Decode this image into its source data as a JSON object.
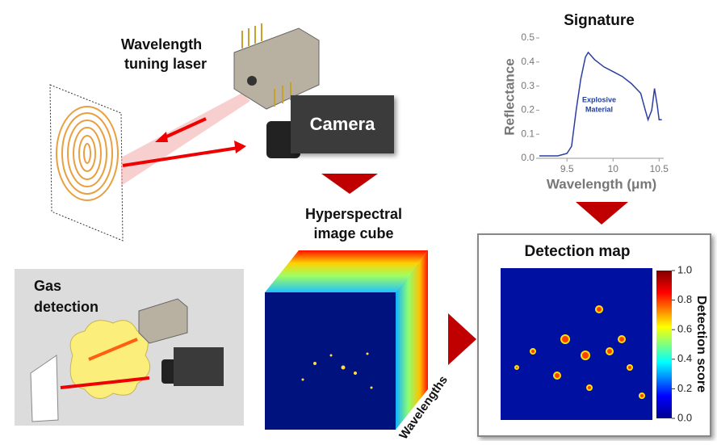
{
  "laser_label": [
    "Wavelength",
    "tuning laser"
  ],
  "camera_label": "Camera",
  "cube_label": [
    "Hyperspectral",
    "image cube"
  ],
  "cube_axis_label": "Wavelengths",
  "gas_label": [
    "Gas",
    "detection"
  ],
  "signature": {
    "title": "Signature",
    "x_label": "Wavelength (μm)",
    "y_label": "Reflectance",
    "annotation": [
      "Explosive",
      "Material"
    ],
    "x": [
      9.2,
      9.4,
      9.5,
      9.55,
      9.6,
      9.65,
      9.7,
      9.73,
      9.8,
      9.9,
      10.0,
      10.1,
      10.2,
      10.3,
      10.35,
      10.38,
      10.42,
      10.45,
      10.48,
      10.5,
      10.53
    ],
    "values": [
      0.01,
      0.01,
      0.02,
      0.05,
      0.2,
      0.33,
      0.42,
      0.44,
      0.41,
      0.38,
      0.36,
      0.34,
      0.31,
      0.27,
      0.2,
      0.16,
      0.2,
      0.29,
      0.22,
      0.16,
      0.16
    ],
    "xlim": [
      9.2,
      10.55
    ],
    "ylim": [
      0,
      0.5
    ],
    "xticks": [
      9.5,
      10,
      10.5
    ],
    "yticks": [
      {
        "value": 0,
        "label": "0.0"
      },
      0.1,
      0.2,
      0.3,
      0.4,
      0.5
    ]
  },
  "detection_map": {
    "title": "Detection map",
    "colorbar_label": "Detection score",
    "colorbar_lim": [
      0,
      1
    ],
    "colorbar_ticks": [
      {
        "value": 0,
        "label": "0.0"
      },
      0.2,
      0.4,
      0.6,
      0.8,
      {
        "value": 1,
        "label": "1.0"
      }
    ]
  }
}
